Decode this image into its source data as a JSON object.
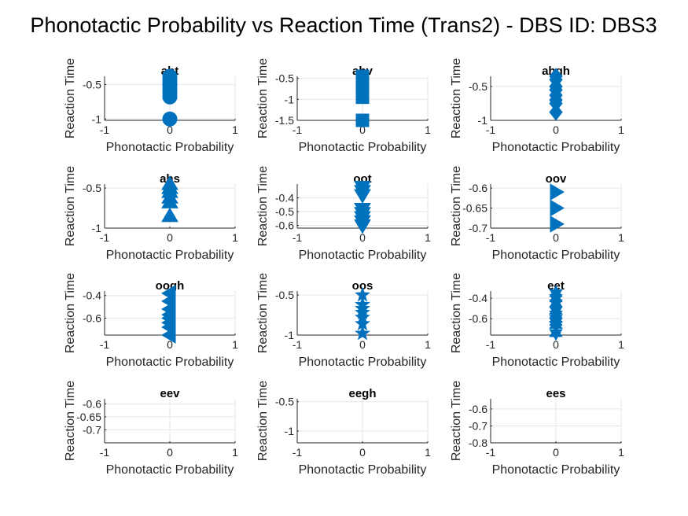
{
  "figure": {
    "title": "Phonotactic Probability vs Reaction Time (Trans2) - DBS ID: DBS3"
  },
  "chart_data": [
    {
      "type": "scatter",
      "title": "aht",
      "marker": "circle",
      "xlabel": "Phonotactic Probability",
      "ylabel": "Reaction Time",
      "xlim": [
        -1,
        1
      ],
      "ylim": [
        -1.02,
        -0.38
      ],
      "xticks": [
        -1,
        0,
        1
      ],
      "yticks": [
        -1,
        -0.5
      ],
      "ytick_labels": [
        "-1",
        "-0.5"
      ],
      "x": [
        0,
        0,
        0,
        0,
        0,
        0,
        0,
        0
      ],
      "y": [
        -0.38,
        -0.43,
        -0.48,
        -0.52,
        -0.57,
        -0.62,
        -0.68,
        -1.0
      ]
    },
    {
      "type": "scatter",
      "title": "ahv",
      "marker": "square",
      "xlabel": "Phonotactic Probability",
      "ylabel": "Reaction Time",
      "xlim": [
        -1,
        1
      ],
      "ylim": [
        -1.5,
        -0.45
      ],
      "xticks": [
        -1,
        0,
        1
      ],
      "yticks": [
        -1.5,
        -1,
        -0.5
      ],
      "ytick_labels": [
        "-1.5",
        "-1",
        "-0.5"
      ],
      "x": [
        0,
        0,
        0,
        0,
        0,
        0,
        0
      ],
      "y": [
        -0.45,
        -0.55,
        -0.65,
        -0.75,
        -0.85,
        -0.95,
        -1.5
      ]
    },
    {
      "type": "scatter",
      "title": "ahgh",
      "marker": "diamond",
      "xlabel": "Phonotactic Probability",
      "ylabel": "Reaction Time",
      "xlim": [
        -1,
        1
      ],
      "ylim": [
        -1.0,
        -0.35
      ],
      "xticks": [
        -1,
        0,
        1
      ],
      "yticks": [
        -1,
        -0.5
      ],
      "ytick_labels": [
        "-1",
        "-0.5"
      ],
      "x": [
        0,
        0,
        0,
        0,
        0,
        0,
        0,
        0
      ],
      "y": [
        -0.35,
        -0.4,
        -0.5,
        -0.55,
        -0.63,
        -0.7,
        -0.75,
        -0.88
      ]
    },
    {
      "type": "scatter",
      "title": "ahs",
      "marker": "triangle-up",
      "xlabel": "Phonotactic Probability",
      "ylabel": "Reaction Time",
      "xlim": [
        -1,
        1
      ],
      "ylim": [
        -1.0,
        -0.45
      ],
      "xticks": [
        -1,
        0,
        1
      ],
      "yticks": [
        -1,
        -0.5
      ],
      "ytick_labels": [
        "-1",
        "-0.5"
      ],
      "x": [
        0,
        0,
        0,
        0,
        0,
        0
      ],
      "y": [
        -0.45,
        -0.5,
        -0.55,
        -0.62,
        -0.68,
        -0.85
      ]
    },
    {
      "type": "scatter",
      "title": "oot",
      "marker": "triangle-down",
      "xlabel": "Phonotactic Probability",
      "ylabel": "Reaction Time",
      "xlim": [
        -1,
        1
      ],
      "ylim": [
        -0.62,
        -0.3
      ],
      "xticks": [
        -1,
        0,
        1
      ],
      "yticks": [
        -0.6,
        -0.5,
        -0.4
      ],
      "ytick_labels": [
        "-0.6",
        "-0.5",
        "-0.4"
      ],
      "x": [
        0,
        0,
        0,
        0,
        0,
        0,
        0,
        0
      ],
      "y": [
        -0.32,
        -0.35,
        -0.38,
        -0.48,
        -0.51,
        -0.54,
        -0.57,
        -0.6
      ]
    },
    {
      "type": "scatter",
      "title": "oov",
      "marker": "triangle-right",
      "xlabel": "Phonotactic Probability",
      "ylabel": "Reaction Time",
      "xlim": [
        -1,
        1
      ],
      "ylim": [
        -0.7,
        -0.59
      ],
      "xticks": [
        -1,
        0,
        1
      ],
      "yticks": [
        -0.7,
        -0.65,
        -0.6
      ],
      "ytick_labels": [
        "-0.7",
        "-0.65",
        "-0.6"
      ],
      "x": [
        0,
        0,
        0
      ],
      "y": [
        -0.61,
        -0.65,
        -0.69
      ]
    },
    {
      "type": "scatter",
      "title": "oogh",
      "marker": "triangle-left",
      "xlabel": "Phonotactic Probability",
      "ylabel": "Reaction Time",
      "xlim": [
        -1,
        1
      ],
      "ylim": [
        -0.75,
        -0.36
      ],
      "xticks": [
        -1,
        0,
        1
      ],
      "yticks": [
        -0.6,
        -0.4
      ],
      "ytick_labels": [
        "-0.6",
        "-0.4"
      ],
      "x": [
        0,
        0,
        0,
        0,
        0,
        0,
        0,
        0
      ],
      "y": [
        -0.38,
        -0.45,
        -0.52,
        -0.57,
        -0.6,
        -0.64,
        -0.68,
        -0.75
      ]
    },
    {
      "type": "scatter",
      "title": "oos",
      "marker": "star",
      "xlabel": "Phonotactic Probability",
      "ylabel": "Reaction Time",
      "xlim": [
        -1,
        1
      ],
      "ylim": [
        -1.0,
        -0.45
      ],
      "xticks": [
        -1,
        0,
        1
      ],
      "yticks": [
        -1,
        -0.5
      ],
      "ytick_labels": [
        "-1",
        "-0.5"
      ],
      "x": [
        0,
        0,
        0,
        0,
        0,
        0,
        0
      ],
      "y": [
        -0.5,
        -0.62,
        -0.67,
        -0.72,
        -0.78,
        -0.86,
        -0.98
      ]
    },
    {
      "type": "scatter",
      "title": "eet",
      "marker": "hexagram",
      "xlabel": "Phonotactic Probability",
      "ylabel": "Reaction Time",
      "xlim": [
        -1,
        1
      ],
      "ylim": [
        -0.76,
        -0.33
      ],
      "xticks": [
        -1,
        0,
        1
      ],
      "yticks": [
        -0.6,
        -0.4
      ],
      "ytick_labels": [
        "-0.6",
        "-0.4"
      ],
      "x": [
        0,
        0,
        0,
        0,
        0,
        0,
        0,
        0,
        0
      ],
      "y": [
        -0.35,
        -0.4,
        -0.45,
        -0.52,
        -0.56,
        -0.6,
        -0.63,
        -0.66,
        -0.74
      ]
    },
    {
      "type": "scatter",
      "title": "eev",
      "marker": "none",
      "xlabel": "Phonotactic Probability",
      "ylabel": "Reaction Time",
      "xlim": [
        -1,
        1
      ],
      "ylim": [
        -0.75,
        -0.58
      ],
      "xticks": [
        -1,
        0,
        1
      ],
      "yticks": [
        -0.7,
        -0.65,
        -0.6
      ],
      "ytick_labels": [
        "-0.7",
        "-0.65",
        "-0.6"
      ],
      "x": [],
      "y": []
    },
    {
      "type": "scatter",
      "title": "eegh",
      "marker": "none",
      "xlabel": "Phonotactic Probability",
      "ylabel": "Reaction Time",
      "xlim": [
        -1,
        1
      ],
      "ylim": [
        -1.2,
        -0.45
      ],
      "xticks": [
        -1,
        0,
        1
      ],
      "yticks": [
        -1,
        -0.5
      ],
      "ytick_labels": [
        "-1",
        "-0.5"
      ],
      "x": [],
      "y": []
    },
    {
      "type": "scatter",
      "title": "ees",
      "marker": "none",
      "xlabel": "Phonotactic Probability",
      "ylabel": "Reaction Time",
      "xlim": [
        -1,
        1
      ],
      "ylim": [
        -0.8,
        -0.54
      ],
      "xticks": [
        -1,
        0,
        1
      ],
      "yticks": [
        -0.8,
        -0.7,
        -0.6
      ],
      "ytick_labels": [
        "-0.8",
        "-0.7",
        "-0.6"
      ],
      "x": [],
      "y": []
    }
  ],
  "colors": {
    "marker": "#0072BD",
    "grid": "#e6e6e6",
    "axis": "#262626",
    "background": "#ffffff"
  }
}
